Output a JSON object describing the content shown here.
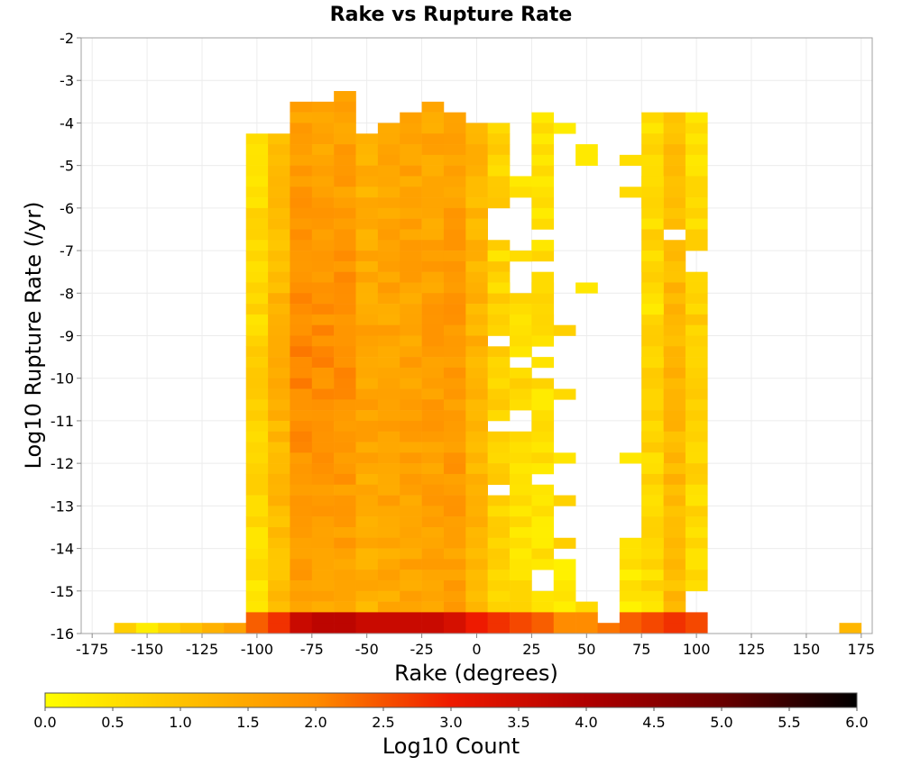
{
  "chart_data": {
    "type": "heatmap",
    "title": "Rake vs Rupture Rate",
    "xlabel": "Rake (degrees)",
    "ylabel": "Log10 Rupture Rate (/yr)",
    "colorbar_label": "Log10 Count",
    "xlim": [
      -180,
      180
    ],
    "ylim": [
      -16,
      -2
    ],
    "x_ticks": [
      -175,
      -150,
      -125,
      -100,
      -75,
      -50,
      -25,
      0,
      25,
      50,
      75,
      100,
      125,
      150,
      175
    ],
    "y_ticks": [
      -2,
      -3,
      -4,
      -5,
      -6,
      -7,
      -8,
      -9,
      -10,
      -11,
      -12,
      -13,
      -14,
      -15,
      -16
    ],
    "colorbar_range": [
      0.0,
      6.0
    ],
    "colorbar_ticks": [
      "0.0",
      "0.5",
      "1.0",
      "1.5",
      "2.0",
      "2.5",
      "3.0",
      "3.5",
      "4.0",
      "4.5",
      "5.0",
      "5.5",
      "6.0"
    ],
    "colormap": [
      "#ffff00",
      "#ffc200",
      "#ff8c00",
      "#ee1a00",
      "#b00000",
      "#6a0000",
      "#000000"
    ],
    "grid": true,
    "bin_width_x": 10,
    "bin_height_y": 0.25,
    "columns": [
      {
        "x": -160,
        "min": -16.0,
        "max": -16.0,
        "base": 0.8,
        "peak": 0.8,
        "bottom": 0.8
      },
      {
        "x": -150,
        "min": -16.0,
        "max": -16.0,
        "base": 0.3,
        "peak": 0.3,
        "bottom": 0.3
      },
      {
        "x": -140,
        "min": -16.0,
        "max": -16.0,
        "base": 0.7,
        "peak": 0.7,
        "bottom": 0.7
      },
      {
        "x": -130,
        "min": -16.0,
        "max": -16.0,
        "base": 1.0,
        "peak": 1.0,
        "bottom": 1.0
      },
      {
        "x": -120,
        "min": -16.0,
        "max": -16.0,
        "base": 1.3,
        "peak": 1.3,
        "bottom": 1.3
      },
      {
        "x": -110,
        "min": -16.0,
        "max": -16.0,
        "base": 1.6,
        "peak": 1.6,
        "bottom": 1.6
      },
      {
        "x": -100,
        "min": -16.0,
        "max": -4.5,
        "base": 0.5,
        "peak": 0.7,
        "bottom": 2.4
      },
      {
        "x": -90,
        "min": -16.0,
        "max": -4.5,
        "base": 1.0,
        "peak": 1.3,
        "bottom": 2.8
      },
      {
        "x": -80,
        "min": -16.0,
        "max": -3.75,
        "base": 1.6,
        "peak": 2.0,
        "bottom": 3.6
      },
      {
        "x": -70,
        "min": -16.0,
        "max": -3.75,
        "base": 1.5,
        "peak": 2.0,
        "bottom": 3.8
      },
      {
        "x": -60,
        "min": -16.0,
        "max": -3.5,
        "base": 1.5,
        "peak": 2.0,
        "bottom": 3.8
      },
      {
        "x": -50,
        "min": -16.0,
        "max": -4.5,
        "base": 1.3,
        "peak": 1.6,
        "bottom": 3.6
      },
      {
        "x": -40,
        "min": -16.0,
        "max": -4.25,
        "base": 1.4,
        "peak": 1.6,
        "bottom": 3.6
      },
      {
        "x": -30,
        "min": -16.0,
        "max": -4.0,
        "base": 1.5,
        "peak": 1.6,
        "bottom": 3.6
      },
      {
        "x": -20,
        "min": -16.0,
        "max": -3.75,
        "base": 1.5,
        "peak": 1.7,
        "bottom": 3.6
      },
      {
        "x": -10,
        "min": -16.0,
        "max": -4.0,
        "base": 1.6,
        "peak": 1.8,
        "bottom": 3.4
      },
      {
        "x": 0,
        "min": -16.0,
        "max": -4.25,
        "base": 1.2,
        "peak": 1.3,
        "bottom": 3.0
      },
      {
        "x": 10,
        "min": -16.0,
        "max": -4.25,
        "base": 0.7,
        "peak": 0.8,
        "bottom": 2.8
      },
      {
        "x": 20,
        "min": -16.0,
        "max": -5.5,
        "base": 0.5,
        "peak": 0.6,
        "bottom": 2.6
      },
      {
        "x": 30,
        "min": -16.0,
        "max": -4.0,
        "base": 0.5,
        "peak": 0.5,
        "bottom": 2.4
      },
      {
        "x": 40,
        "min": -16.0,
        "max": -14.5,
        "base": 0.4,
        "peak": 0.4,
        "bottom": 2.0
      },
      {
        "x": 50,
        "min": -16.0,
        "max": -15.5,
        "base": 0.5,
        "peak": 0.5,
        "bottom": 2.0
      },
      {
        "x": 60,
        "min": -16.0,
        "max": -16.0,
        "base": 2.2,
        "peak": 2.2,
        "bottom": 2.2
      },
      {
        "x": 70,
        "min": -16.0,
        "max": -14.0,
        "base": 0.4,
        "peak": 0.4,
        "bottom": 2.4
      },
      {
        "x": 80,
        "min": -16.0,
        "max": -4.0,
        "base": 0.6,
        "peak": 0.7,
        "bottom": 2.6
      },
      {
        "x": 90,
        "min": -16.0,
        "max": -4.0,
        "base": 1.1,
        "peak": 1.2,
        "bottom": 2.8
      },
      {
        "x": 100,
        "min": -16.0,
        "max": -4.0,
        "base": 0.4,
        "peak": 0.9,
        "bottom": 2.6
      },
      {
        "x": 170,
        "min": -16.0,
        "max": -16.0,
        "base": 1.2,
        "peak": 1.2,
        "bottom": 1.2
      }
    ],
    "sparse_cells": [
      {
        "x": 10,
        "y": -7.25
      },
      {
        "x": 10,
        "y": -8.0
      },
      {
        "x": 20,
        "y": -7.25
      },
      {
        "x": 30,
        "y": -7.0
      },
      {
        "x": 30,
        "y": -8.0
      },
      {
        "x": 30,
        "y": -8.75
      },
      {
        "x": 40,
        "y": -4.25
      },
      {
        "x": 40,
        "y": -9.0
      },
      {
        "x": 40,
        "y": -10.5
      },
      {
        "x": 40,
        "y": -12.0
      },
      {
        "x": 40,
        "y": -13.0
      },
      {
        "x": 40,
        "y": -14.0
      },
      {
        "x": 50,
        "y": -4.75
      },
      {
        "x": 50,
        "y": -5.0
      },
      {
        "x": 50,
        "y": -8.0
      },
      {
        "x": 70,
        "y": -5.0
      },
      {
        "x": 70,
        "y": -5.75
      },
      {
        "x": 70,
        "y": -12.0
      },
      {
        "x": 80,
        "y": -5.5
      },
      {
        "x": 80,
        "y": -5.75
      },
      {
        "x": 80,
        "y": -6.0
      },
      {
        "x": 80,
        "y": -7.25
      },
      {
        "x": 80,
        "y": -7.5
      },
      {
        "x": 80,
        "y": -8.0
      },
      {
        "x": 80,
        "y": -8.5
      },
      {
        "x": 80,
        "y": -9.75
      },
      {
        "x": 80,
        "y": -11.5
      },
      {
        "x": 80,
        "y": -12.0
      },
      {
        "x": 80,
        "y": -14.0
      }
    ],
    "gaps": [
      {
        "x": 10,
        "y": -6.25
      },
      {
        "x": 10,
        "y": -6.5
      },
      {
        "x": 10,
        "y": -6.75
      },
      {
        "x": 10,
        "y": -9.25
      },
      {
        "x": 10,
        "y": -11.25
      },
      {
        "x": 10,
        "y": -12.75
      },
      {
        "x": 20,
        "y": -6.0
      },
      {
        "x": 20,
        "y": -6.25
      },
      {
        "x": 20,
        "y": -6.5
      },
      {
        "x": 20,
        "y": -6.75
      },
      {
        "x": 20,
        "y": -7.0
      },
      {
        "x": 20,
        "y": -7.5
      },
      {
        "x": 20,
        "y": -7.75
      },
      {
        "x": 20,
        "y": -8.0
      },
      {
        "x": 20,
        "y": -9.75
      },
      {
        "x": 20,
        "y": -11.0
      },
      {
        "x": 20,
        "y": -11.25
      },
      {
        "x": 30,
        "y": -6.75
      },
      {
        "x": 30,
        "y": -7.5
      },
      {
        "x": 30,
        "y": -9.5
      },
      {
        "x": 30,
        "y": -10.0
      },
      {
        "x": 30,
        "y": -12.5
      },
      {
        "x": 30,
        "y": -14.75
      },
      {
        "x": 30,
        "y": -15.0
      },
      {
        "x": 90,
        "y": -6.75
      },
      {
        "x": 100,
        "y": -7.5
      },
      {
        "x": 100,
        "y": -7.25
      },
      {
        "x": 100,
        "y": -15.25
      },
      {
        "x": 100,
        "y": -15.5
      }
    ]
  }
}
